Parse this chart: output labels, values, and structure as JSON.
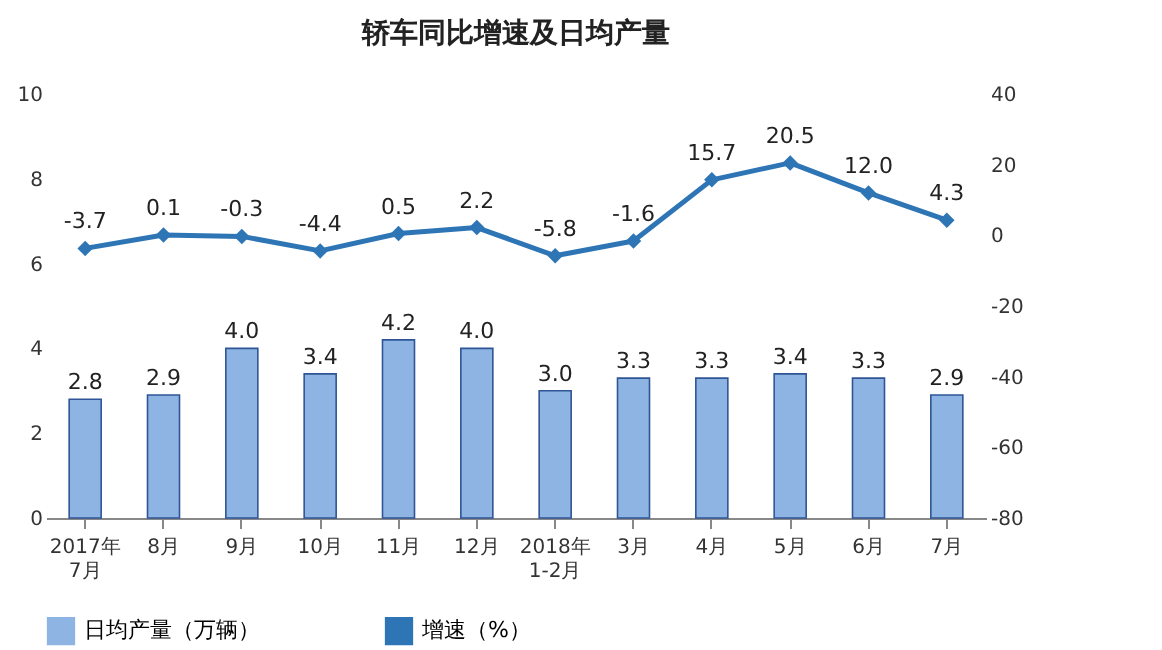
{
  "chart_data": {
    "type": "bar",
    "title": "轿车同比增速及日均产量",
    "categories": [
      "2017年\n7月",
      "8月",
      "9月",
      "10月",
      "11月",
      "12月",
      "2018年\n1-2月",
      "3月",
      "4月",
      "5月",
      "6月",
      "7月"
    ],
    "series": [
      {
        "name": "日均产量（万辆）",
        "color": "#8db4e2",
        "values": [
          2.8,
          2.9,
          4.0,
          3.4,
          4.2,
          4.0,
          3.0,
          3.3,
          3.3,
          3.4,
          3.3,
          2.9
        ],
        "value_labels": [
          "2.8",
          "2.9",
          "4.0",
          "3.4",
          "4.2",
          "4.0",
          "3.0",
          "3.3",
          "3.3",
          "3.4",
          "3.3",
          "2.9"
        ]
      },
      {
        "name": "增速（%）",
        "type": "line",
        "axis": "y2",
        "color": "#2e75b6",
        "marker": "diamond",
        "values": [
          -3.7,
          0.1,
          -0.3,
          -4.4,
          0.5,
          2.2,
          -5.8,
          -1.6,
          15.7,
          20.5,
          12.0,
          4.3
        ],
        "value_labels": [
          "-3.7",
          "0.1",
          "-0.3",
          "-4.4",
          "0.5",
          "2.2",
          "-5.8",
          "-1.6",
          "15.7",
          "20.5",
          "12.0",
          "4.3"
        ]
      }
    ],
    "ylim": [
      0,
      10
    ],
    "yticks": [
      0,
      2,
      4,
      6,
      8,
      10
    ],
    "y2lim": [
      -80,
      40
    ],
    "y2ticks": [
      -80,
      -60,
      -40,
      -20,
      0,
      20,
      40
    ],
    "grid": false,
    "legend": "bottom"
  }
}
